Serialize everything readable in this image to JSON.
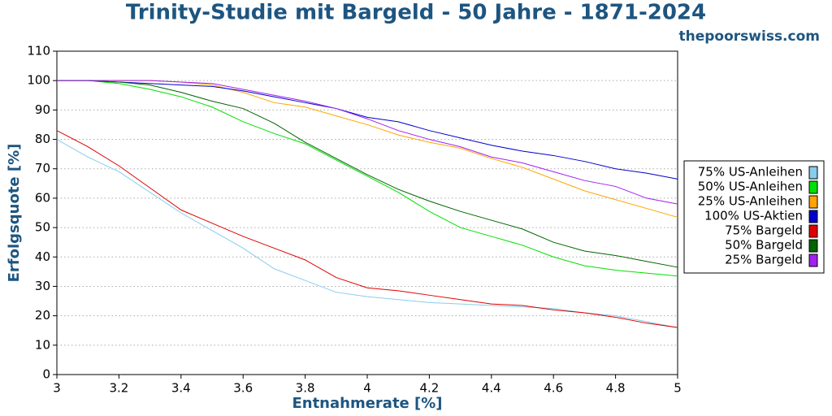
{
  "chart_data": {
    "type": "line",
    "title": "Trinity-Studie mit Bargeld - 50 Jahre - 1871-2024",
    "source": "thepoorswiss.com",
    "x_label": "Entnahmerate [%]",
    "y_label": "Erfolgsquote [%]",
    "x": [
      3,
      3.1,
      3.2,
      3.3,
      3.4,
      3.5,
      3.6,
      3.7,
      3.8,
      3.9,
      4,
      4.1,
      4.2,
      4.3,
      4.4,
      4.5,
      4.6,
      4.7,
      4.8,
      4.9,
      5
    ],
    "xlim": [
      3,
      5
    ],
    "xticks": [
      3,
      3.2,
      3.4,
      3.6,
      3.8,
      4,
      4.2,
      4.4,
      4.6,
      4.8,
      5
    ],
    "ylim": [
      0,
      110
    ],
    "yticks": [
      0,
      10,
      20,
      30,
      40,
      50,
      60,
      70,
      80,
      90,
      100,
      110
    ],
    "grid": true,
    "legend": "right",
    "series": [
      {
        "name": "75% US-Anleihen",
        "color": "#87ceeb",
        "values": [
          80,
          74,
          69,
          62,
          55,
          49,
          43,
          36,
          32,
          28,
          26.5,
          25.5,
          24.5,
          24,
          23.5,
          23,
          22.5,
          21,
          20,
          18,
          16
        ]
      },
      {
        "name": "50% US-Anleihen",
        "color": "#00e000",
        "values": [
          100,
          100,
          99,
          97,
          94.5,
          91,
          86,
          82,
          78.5,
          73,
          67.5,
          62,
          55.5,
          50,
          47,
          44,
          40,
          37,
          35.5,
          34.5,
          33.5
        ]
      },
      {
        "name": "25% US-Anleihen",
        "color": "#ffa500",
        "values": [
          100,
          100,
          100,
          100,
          99.5,
          98.5,
          96,
          92.5,
          91,
          88,
          85,
          81.5,
          79,
          77,
          73.5,
          70.5,
          66.5,
          62.5,
          59.5,
          56.5,
          53.5
        ]
      },
      {
        "name": "100% US-Aktien",
        "color": "#0000cd",
        "values": [
          100,
          100,
          99.5,
          99,
          98.5,
          98,
          96.5,
          94.5,
          92.5,
          90.5,
          87.5,
          86,
          83,
          80.5,
          78,
          76,
          74.5,
          72.5,
          70,
          68.5,
          66.5
        ]
      },
      {
        "name": "75% Bargeld",
        "color": "#e00000",
        "values": [
          83,
          77.5,
          71,
          63.5,
          56,
          51.5,
          47,
          43,
          39,
          33,
          29.5,
          28.5,
          27,
          25.5,
          24,
          23.5,
          22,
          21,
          19.5,
          17.5,
          16
        ]
      },
      {
        "name": "50% Bargeld",
        "color": "#006400",
        "values": [
          100,
          100,
          99.5,
          98.5,
          96,
          93,
          90.5,
          85.5,
          79,
          73.5,
          68,
          63,
          59,
          55.5,
          52.5,
          49.5,
          45,
          42,
          40.5,
          38.5,
          36.5
        ]
      },
      {
        "name": "25% Bargeld",
        "color": "#a020f0",
        "values": [
          100,
          100,
          100,
          100,
          99.5,
          99,
          97,
          95,
          93,
          90.5,
          87,
          83,
          80,
          77.5,
          74,
          72,
          69,
          66,
          64,
          60,
          58
        ]
      }
    ]
  }
}
